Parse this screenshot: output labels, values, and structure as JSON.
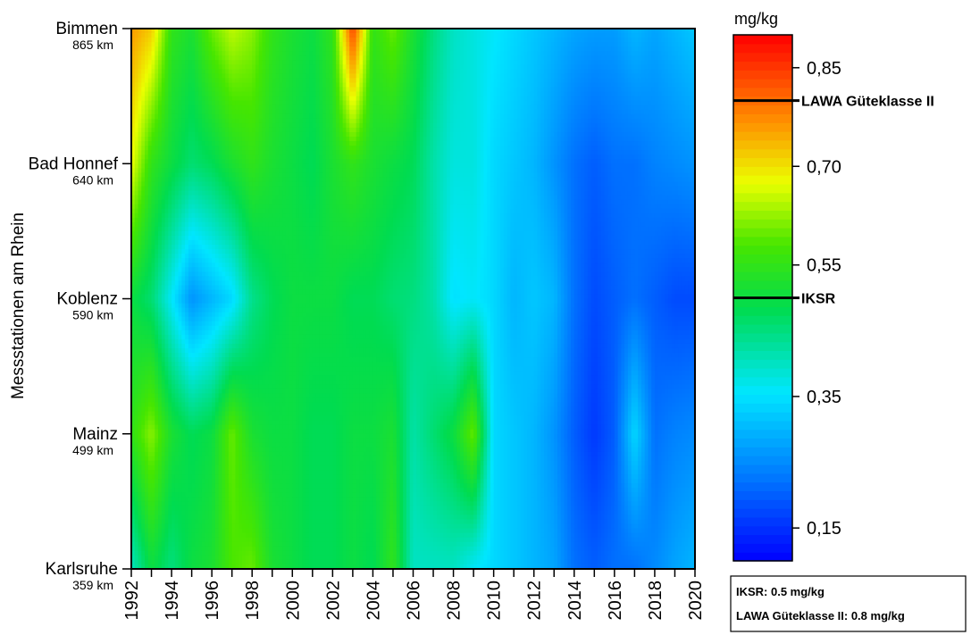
{
  "chart_data": {
    "type": "heatmap",
    "ylabel": "Messstationen am Rhein",
    "x": [
      1992,
      1993,
      1994,
      1995,
      1996,
      1997,
      1998,
      1999,
      2000,
      2001,
      2002,
      2003,
      2004,
      2005,
      2006,
      2007,
      2008,
      2009,
      2010,
      2011,
      2012,
      2013,
      2014,
      2015,
      2016,
      2017,
      2018,
      2019,
      2020
    ],
    "x_tick_labels": [
      "1992",
      "1994",
      "1996",
      "1998",
      "2000",
      "2002",
      "2004",
      "2006",
      "2008",
      "2010",
      "2012",
      "2014",
      "2016",
      "2018",
      "2020"
    ],
    "stations": [
      {
        "name": "Bimmen",
        "km": "865 km"
      },
      {
        "name": "Bad Honnef",
        "km": "640 km"
      },
      {
        "name": "Koblenz",
        "km": "590 km"
      },
      {
        "name": "Mainz",
        "km": "499 km"
      },
      {
        "name": "Karlsruhe",
        "km": "359 km"
      }
    ],
    "values": [
      [
        0.76,
        0.72,
        0.55,
        0.52,
        0.6,
        0.65,
        0.62,
        0.55,
        0.52,
        0.5,
        0.55,
        0.84,
        0.55,
        0.6,
        0.52,
        0.45,
        0.4,
        0.38,
        0.36,
        0.34,
        0.32,
        0.3,
        0.28,
        0.27,
        0.27,
        0.3,
        0.28,
        0.3,
        0.32
      ],
      [
        0.68,
        0.55,
        0.5,
        0.46,
        0.48,
        0.52,
        0.55,
        0.52,
        0.5,
        0.48,
        0.52,
        0.55,
        0.52,
        0.5,
        0.48,
        0.42,
        0.38,
        0.38,
        0.34,
        0.32,
        0.3,
        0.26,
        0.22,
        0.2,
        0.22,
        0.22,
        0.24,
        0.25,
        0.26
      ],
      [
        0.5,
        0.46,
        0.36,
        0.26,
        0.3,
        0.34,
        0.44,
        0.48,
        0.5,
        0.5,
        0.5,
        0.48,
        0.48,
        0.46,
        0.45,
        0.42,
        0.35,
        0.36,
        0.34,
        0.3,
        0.32,
        0.3,
        0.22,
        0.18,
        0.2,
        0.22,
        0.2,
        0.18,
        0.18
      ],
      [
        0.55,
        0.62,
        0.52,
        0.48,
        0.5,
        0.6,
        0.52,
        0.5,
        0.5,
        0.48,
        0.48,
        0.5,
        0.5,
        0.52,
        0.42,
        0.46,
        0.5,
        0.6,
        0.34,
        0.32,
        0.3,
        0.26,
        0.2,
        0.16,
        0.2,
        0.34,
        0.22,
        0.24,
        0.25
      ],
      [
        0.4,
        0.5,
        0.45,
        0.5,
        0.52,
        0.58,
        0.6,
        0.52,
        0.5,
        0.48,
        0.48,
        0.5,
        0.48,
        0.55,
        0.4,
        0.4,
        0.4,
        0.36,
        0.34,
        0.32,
        0.3,
        0.28,
        0.22,
        0.2,
        0.22,
        0.22,
        0.25,
        0.28,
        0.3
      ]
    ],
    "colorbar": {
      "unit": "mg/kg",
      "range": [
        0.1,
        0.9
      ],
      "ticks": [
        0.85,
        0.7,
        0.55,
        0.35,
        0.15
      ],
      "tick_labels": [
        "0,85",
        "0,70",
        "0,55",
        "0,35",
        "0,15"
      ]
    },
    "reference_lines": [
      {
        "label": "LAWA Güteklasse II",
        "value": 0.8
      },
      {
        "label": "IKSR",
        "value": 0.5
      }
    ],
    "notes": [
      "IKSR: 0.5 mg/kg",
      "LAWA Güteklasse II: 0.8 mg/kg"
    ]
  }
}
